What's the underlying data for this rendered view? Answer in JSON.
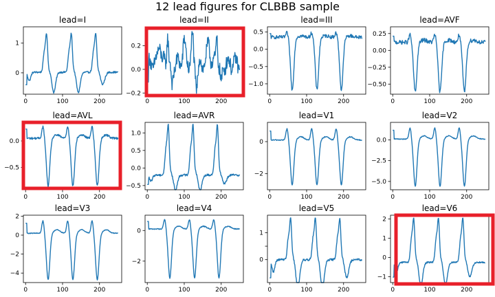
{
  "figure": {
    "suptitle": "12 lead figures for CLBBB sample",
    "line_color": "#1f77b4",
    "highlight_color": "#e8202a"
  },
  "chart_data": [
    {
      "type": "line",
      "title": "lead=I",
      "highlight": false,
      "xlim": [
        -6,
        260
      ],
      "ylim": [
        -0.72,
        1.55
      ],
      "xticks": [
        0,
        100,
        200
      ],
      "yticks": [
        0,
        1
      ],
      "ytick_labels": [
        "0",
        "1"
      ],
      "kind": "lbbb_pos",
      "baseline": 0.02,
      "peak": 1.3,
      "trough": -0.45,
      "notch": 0.85,
      "noise": 0.03,
      "peaks_x": [
        55,
        122,
        188
      ]
    },
    {
      "type": "line",
      "title": "lead=II",
      "highlight": true,
      "xlim": [
        -6,
        260
      ],
      "ylim": [
        -0.21,
        0.36
      ],
      "xticks": [
        0,
        100,
        200
      ],
      "yticks": [
        -0.2,
        0,
        0.2
      ],
      "ytick_labels": [
        "−0.2",
        "0.0",
        "0.2"
      ],
      "kind": "noisy",
      "baseline": 0.05,
      "peak": 0.33,
      "trough": -0.18,
      "noise": 0.06,
      "peaks_x": [
        55,
        122,
        188
      ]
    },
    {
      "type": "line",
      "title": "lead=III",
      "highlight": false,
      "xlim": [
        -6,
        260
      ],
      "ylim": [
        -1.3,
        0.65
      ],
      "xticks": [
        0,
        100,
        200
      ],
      "yticks": [
        -1,
        -0.5,
        0,
        0.5
      ],
      "ytick_labels": [
        "−1.0",
        "−0.5",
        "0.0",
        "0.5"
      ],
      "kind": "lbbb_neg",
      "baseline": 0.35,
      "peak": 0.5,
      "trough": -1.18,
      "noise": 0.05,
      "peaks_x": [
        55,
        122,
        188
      ]
    },
    {
      "type": "line",
      "title": "lead=AVF",
      "highlight": false,
      "xlim": [
        -6,
        260
      ],
      "ylim": [
        -0.65,
        0.35
      ],
      "xticks": [
        0,
        100,
        200
      ],
      "yticks": [
        -0.5,
        -0.25,
        0,
        0.25
      ],
      "ytick_labels": [
        "−0.50",
        "−0.25",
        "0.00",
        "0.25"
      ],
      "kind": "lbbb_neg",
      "baseline": 0.12,
      "peak": 0.25,
      "trough": -0.62,
      "noise": 0.03,
      "peaks_x": [
        55,
        122,
        188
      ]
    },
    {
      "type": "line",
      "title": "lead=AVL",
      "highlight": true,
      "xlim": [
        -6,
        260
      ],
      "ylim": [
        -0.92,
        0.35
      ],
      "xticks": [
        0,
        100,
        200
      ],
      "yticks": [
        -0.5,
        0
      ],
      "ytick_labels": [
        "−0.5",
        "0.0"
      ],
      "kind": "lbbb_neg",
      "baseline": 0.05,
      "peak": 0.3,
      "trough": -0.85,
      "noise": 0.02,
      "peaks_x": [
        55,
        122,
        188
      ]
    },
    {
      "type": "line",
      "title": "lead=AVR",
      "highlight": false,
      "xlim": [
        -6,
        260
      ],
      "ylim": [
        -0.62,
        1.3
      ],
      "xticks": [
        0,
        100,
        200
      ],
      "yticks": [
        -0.5,
        0,
        0.5,
        1
      ],
      "ytick_labels": [
        "−0.5",
        "0.0",
        "0.5",
        "1.0"
      ],
      "kind": "lbbb_pos",
      "baseline": -0.2,
      "peak": 1.2,
      "trough": -0.5,
      "notch": 0.6,
      "noise": 0.03,
      "peaks_x": [
        55,
        122,
        188
      ]
    },
    {
      "type": "line",
      "title": "lead=V1",
      "highlight": false,
      "xlim": [
        -6,
        260
      ],
      "ylim": [
        -3.0,
        1.2
      ],
      "xticks": [
        0,
        100,
        200
      ],
      "yticks": [
        -2,
        0
      ],
      "ytick_labels": [
        "−2",
        "0"
      ],
      "kind": "lbbb_neg",
      "baseline": 0.1,
      "peak": 0.9,
      "trough": -2.7,
      "noise": 0.03,
      "peaks_x": [
        55,
        122,
        188
      ]
    },
    {
      "type": "line",
      "title": "lead=V2",
      "highlight": false,
      "xlim": [
        -6,
        260
      ],
      "ylim": [
        -6.0,
        2.1
      ],
      "xticks": [
        0,
        100,
        200
      ],
      "yticks": [
        -5,
        -2.5,
        0
      ],
      "ytick_labels": [
        "−5.0",
        "−2.5",
        "0.0"
      ],
      "kind": "lbbb_neg",
      "baseline": 0.1,
      "peak": 1.6,
      "trough": -5.6,
      "noise": 0.05,
      "peaks_x": [
        55,
        122,
        188
      ]
    },
    {
      "type": "line",
      "title": "lead=V3",
      "highlight": false,
      "xlim": [
        -6,
        260
      ],
      "ylim": [
        -5.0,
        2.1
      ],
      "xticks": [
        0,
        100,
        200
      ],
      "yticks": [
        -4,
        -2,
        0,
        2
      ],
      "ytick_labels": [
        "−4",
        "−2",
        "0",
        "2"
      ],
      "kind": "lbbb_neg",
      "baseline": 0.2,
      "peak": 1.7,
      "trough": -4.7,
      "noise": 0.04,
      "peaks_x": [
        55,
        122,
        188
      ]
    },
    {
      "type": "line",
      "title": "lead=V4",
      "highlight": false,
      "xlim": [
        -6,
        260
      ],
      "ylim": [
        -3.4,
        1.0
      ],
      "xticks": [
        0,
        100,
        200
      ],
      "yticks": [
        -2,
        0
      ],
      "ytick_labels": [
        "−2",
        "0"
      ],
      "kind": "lbbb_neg",
      "baseline": 0.1,
      "peak": 0.8,
      "trough": -3.1,
      "noise": 0.03,
      "peaks_x": [
        55,
        122,
        188
      ]
    },
    {
      "type": "line",
      "title": "lead=V5",
      "highlight": false,
      "xlim": [
        -6,
        260
      ],
      "ylim": [
        -0.85,
        1.65
      ],
      "xticks": [
        0,
        100,
        200
      ],
      "yticks": [
        0,
        0.5,
        1
      ],
      "ytick_labels": [
        "0",
        "",
        "1"
      ],
      "kind": "lbbb_pos",
      "baseline": 0.0,
      "peak": 1.5,
      "trough": -0.75,
      "notch": 1.2,
      "noise": 0.04,
      "peaks_x": [
        55,
        122,
        188
      ]
    },
    {
      "type": "line",
      "title": "lead=V6",
      "highlight": true,
      "xlim": [
        -6,
        260
      ],
      "ylim": [
        -1.3,
        2.2
      ],
      "xticks": [
        0,
        100,
        200
      ],
      "yticks": [
        -1,
        0,
        1,
        2
      ],
      "ytick_labels": [
        "−1",
        "0",
        "1",
        "2"
      ],
      "kind": "lbbb_pos",
      "baseline": -0.25,
      "peak": 2.0,
      "trough": -1.1,
      "notch": 1.5,
      "noise": 0.04,
      "peaks_x": [
        55,
        122,
        188
      ]
    }
  ]
}
